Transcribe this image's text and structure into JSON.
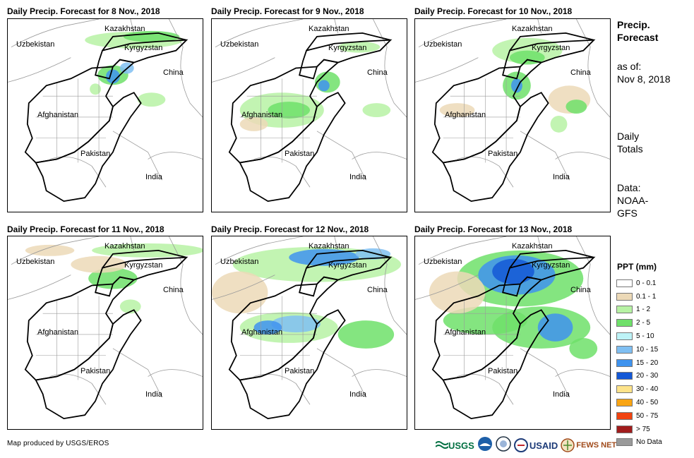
{
  "panels": [
    {
      "title": "Daily Precip. Forecast for 8 Nov., 2018"
    },
    {
      "title": "Daily Precip. Forecast for 9 Nov., 2018"
    },
    {
      "title": "Daily Precip. Forecast for 10 Nov., 2018"
    },
    {
      "title": "Daily Precip. Forecast for 11 Nov., 2018"
    },
    {
      "title": "Daily Precip. Forecast for 12 Nov., 2018"
    },
    {
      "title": "Daily Precip. Forecast for 13 Nov., 2018"
    }
  ],
  "map_labels": {
    "kazakhstan": "Kazakhstan",
    "uzbekistan": "Uzbekistan",
    "kyrgyzstan": "Kyrgyzstan",
    "china": "China",
    "afghanistan": "Afghanistan",
    "pakistan": "Pakistan",
    "india": "India"
  },
  "sidebar": {
    "title_line1": "Precip.",
    "title_line2": "Forecast",
    "asof_line1": "as of:",
    "asof_line2": "Nov 8, 2018",
    "daily_line1": "Daily",
    "daily_line2": "Totals",
    "data_line1": "Data:",
    "data_line2": "NOAA-",
    "data_line3": "GFS"
  },
  "legend": {
    "title": "PPT (mm)",
    "items": [
      {
        "label": "0 - 0.1",
        "color": "#ffffff"
      },
      {
        "label": "0.1 - 1",
        "color": "#ecd9b7"
      },
      {
        "label": "1 - 2",
        "color": "#b7f2a4"
      },
      {
        "label": "2 - 5",
        "color": "#6fe06a"
      },
      {
        "label": "5 - 10",
        "color": "#bdf3f7"
      },
      {
        "label": "10 - 15",
        "color": "#80bff2"
      },
      {
        "label": "15 - 20",
        "color": "#3f93ee"
      },
      {
        "label": "20 - 30",
        "color": "#1458d6"
      },
      {
        "label": "30 - 40",
        "color": "#fde38a"
      },
      {
        "label": "40 - 50",
        "color": "#f9a514"
      },
      {
        "label": "50 - 75",
        "color": "#f14310"
      },
      {
        "label": "> 75",
        "color": "#a11c1c"
      },
      {
        "label": "No Data",
        "color": "#9a9a9a"
      }
    ]
  },
  "credit": "Map produced by USGS/EROS",
  "logos": {
    "usgs": "USGS",
    "usaid": "USAID",
    "fewsnet": "FEWS NET"
  }
}
